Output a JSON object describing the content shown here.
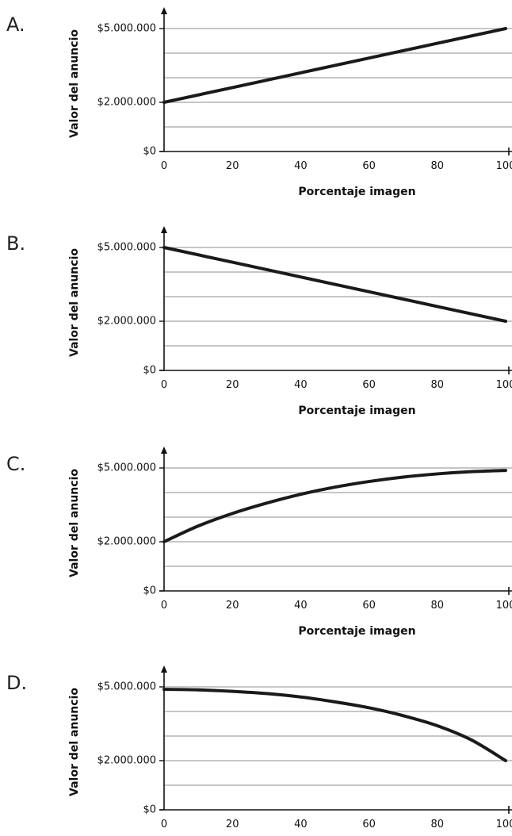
{
  "chart_data": [
    {
      "type": "line",
      "option": "A.",
      "xlabel": "Porcentaje imagen",
      "ylabel": "Valor del anuncio",
      "x_ticks": [
        "0",
        "20",
        "40",
        "60",
        "80",
        "100"
      ],
      "y_tick_labels": [
        "$0",
        "$2.000.000",
        "$5.000.000"
      ],
      "y_tick_values": [
        0,
        2000000,
        5000000
      ],
      "gridlines": [
        1000000,
        2000000,
        3000000,
        4000000,
        5000000
      ],
      "xlim": [
        0,
        100
      ],
      "ylim": [
        0,
        5000000
      ],
      "grid": true,
      "series": [
        {
          "x": [
            0,
            20,
            40,
            60,
            80,
            100
          ],
          "y": [
            2000000,
            2600000,
            3200000,
            3800000,
            4400000,
            5000000
          ]
        }
      ]
    },
    {
      "type": "line",
      "option": "B.",
      "xlabel": "Porcentaje imagen",
      "ylabel": "Valor del anuncio",
      "x_ticks": [
        "0",
        "20",
        "40",
        "60",
        "80",
        "100"
      ],
      "y_tick_labels": [
        "$0",
        "$2.000.000",
        "$5.000.000"
      ],
      "y_tick_values": [
        0,
        2000000,
        5000000
      ],
      "gridlines": [
        1000000,
        2000000,
        3000000,
        4000000,
        5000000
      ],
      "xlim": [
        0,
        100
      ],
      "ylim": [
        0,
        5000000
      ],
      "grid": true,
      "series": [
        {
          "x": [
            0,
            20,
            40,
            60,
            80,
            100
          ],
          "y": [
            5000000,
            4400000,
            3800000,
            3200000,
            2600000,
            2000000
          ]
        }
      ]
    },
    {
      "type": "line",
      "option": "C.",
      "xlabel": "Porcentaje imagen",
      "ylabel": "Valor del anuncio",
      "x_ticks": [
        "0",
        "20",
        "40",
        "60",
        "80",
        "100"
      ],
      "y_tick_labels": [
        "$0",
        "$2.000.000",
        "$5.000.000"
      ],
      "y_tick_values": [
        0,
        2000000,
        5000000
      ],
      "gridlines": [
        1000000,
        2000000,
        3000000,
        4000000,
        5000000
      ],
      "xlim": [
        0,
        100
      ],
      "ylim": [
        0,
        5000000
      ],
      "grid": true,
      "series": [
        {
          "x": [
            0,
            10,
            20,
            30,
            40,
            50,
            60,
            70,
            80,
            90,
            100
          ],
          "y": [
            2000000,
            2640000,
            3150000,
            3570000,
            3930000,
            4220000,
            4450000,
            4630000,
            4760000,
            4850000,
            4900000
          ]
        }
      ]
    },
    {
      "type": "line",
      "option": "D.",
      "xlabel": "",
      "ylabel": "Valor del anuncio",
      "x_ticks": [
        "0",
        "20",
        "40",
        "60",
        "80",
        "100"
      ],
      "y_tick_labels": [
        "$0",
        "$2.000.000",
        "$5.000.000"
      ],
      "y_tick_values": [
        0,
        2000000,
        5000000
      ],
      "gridlines": [
        1000000,
        2000000,
        3000000,
        4000000,
        5000000
      ],
      "xlim": [
        0,
        100
      ],
      "ylim": [
        0,
        5000000
      ],
      "grid": true,
      "series": [
        {
          "x": [
            0,
            10,
            20,
            30,
            40,
            50,
            60,
            70,
            80,
            90,
            100
          ],
          "y": [
            4900000,
            4880000,
            4820000,
            4730000,
            4590000,
            4390000,
            4150000,
            3830000,
            3420000,
            2840000,
            2000000
          ]
        }
      ]
    }
  ]
}
